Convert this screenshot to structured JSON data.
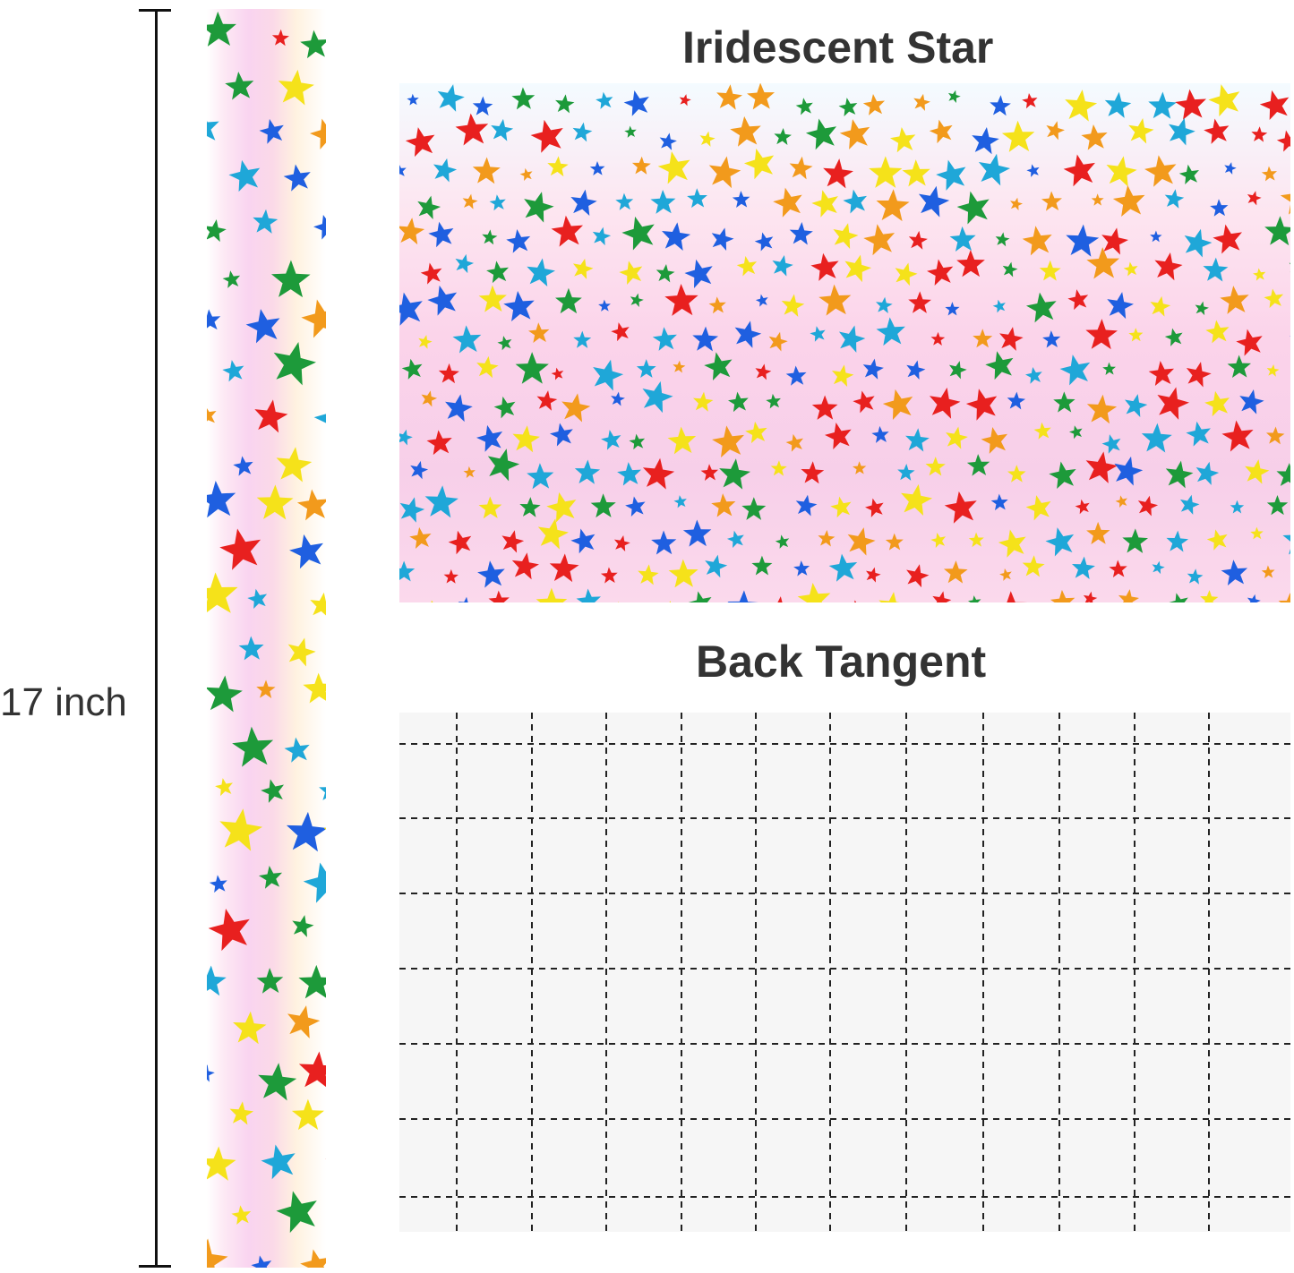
{
  "dimension": {
    "label": "17 inch"
  },
  "front": {
    "title": "Iridescent Star"
  },
  "back": {
    "title": "Back Tangent"
  },
  "colors": {
    "star_palette": [
      "#e8201f",
      "#1f5fe0",
      "#1d9a3a",
      "#f5e21a",
      "#f29a1c",
      "#1fa7d8"
    ],
    "grid_line": "#222222"
  }
}
